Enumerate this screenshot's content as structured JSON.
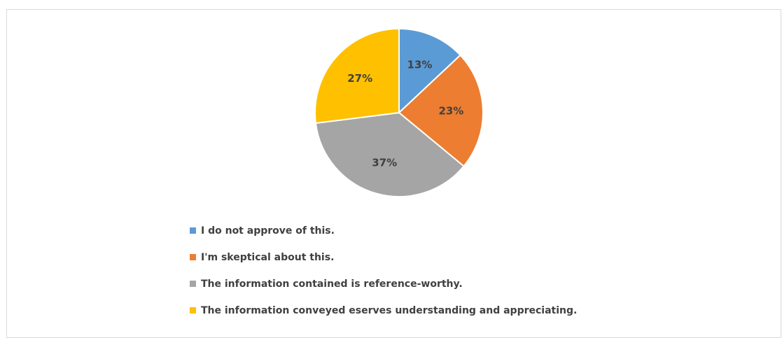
{
  "chart_data": {
    "type": "pie",
    "categories": [
      "I do not approve of this.",
      "I'm skeptical about this.",
      "The information contained is reference-worthy.",
      "The information conveyed eserves understanding and appreciating."
    ],
    "values": [
      13,
      23,
      37,
      27
    ],
    "data_labels": [
      "13%",
      "23%",
      "37%",
      "27%"
    ],
    "colors": [
      "#5b9bd5",
      "#ed7d31",
      "#a5a5a5",
      "#ffc000"
    ],
    "start_angle_deg": 0,
    "direction": "clockwise",
    "legend_position": "bottom",
    "title": ""
  },
  "legend": {
    "items": [
      {
        "label": "I do not approve of this.",
        "color": "#5b9bd5"
      },
      {
        "label": "I'm skeptical about this.",
        "color": "#ed7d31"
      },
      {
        "label": "The information contained is reference-worthy.",
        "color": "#a5a5a5"
      },
      {
        "label": "The information conveyed eserves understanding and appreciating.",
        "color": "#ffc000"
      }
    ]
  }
}
